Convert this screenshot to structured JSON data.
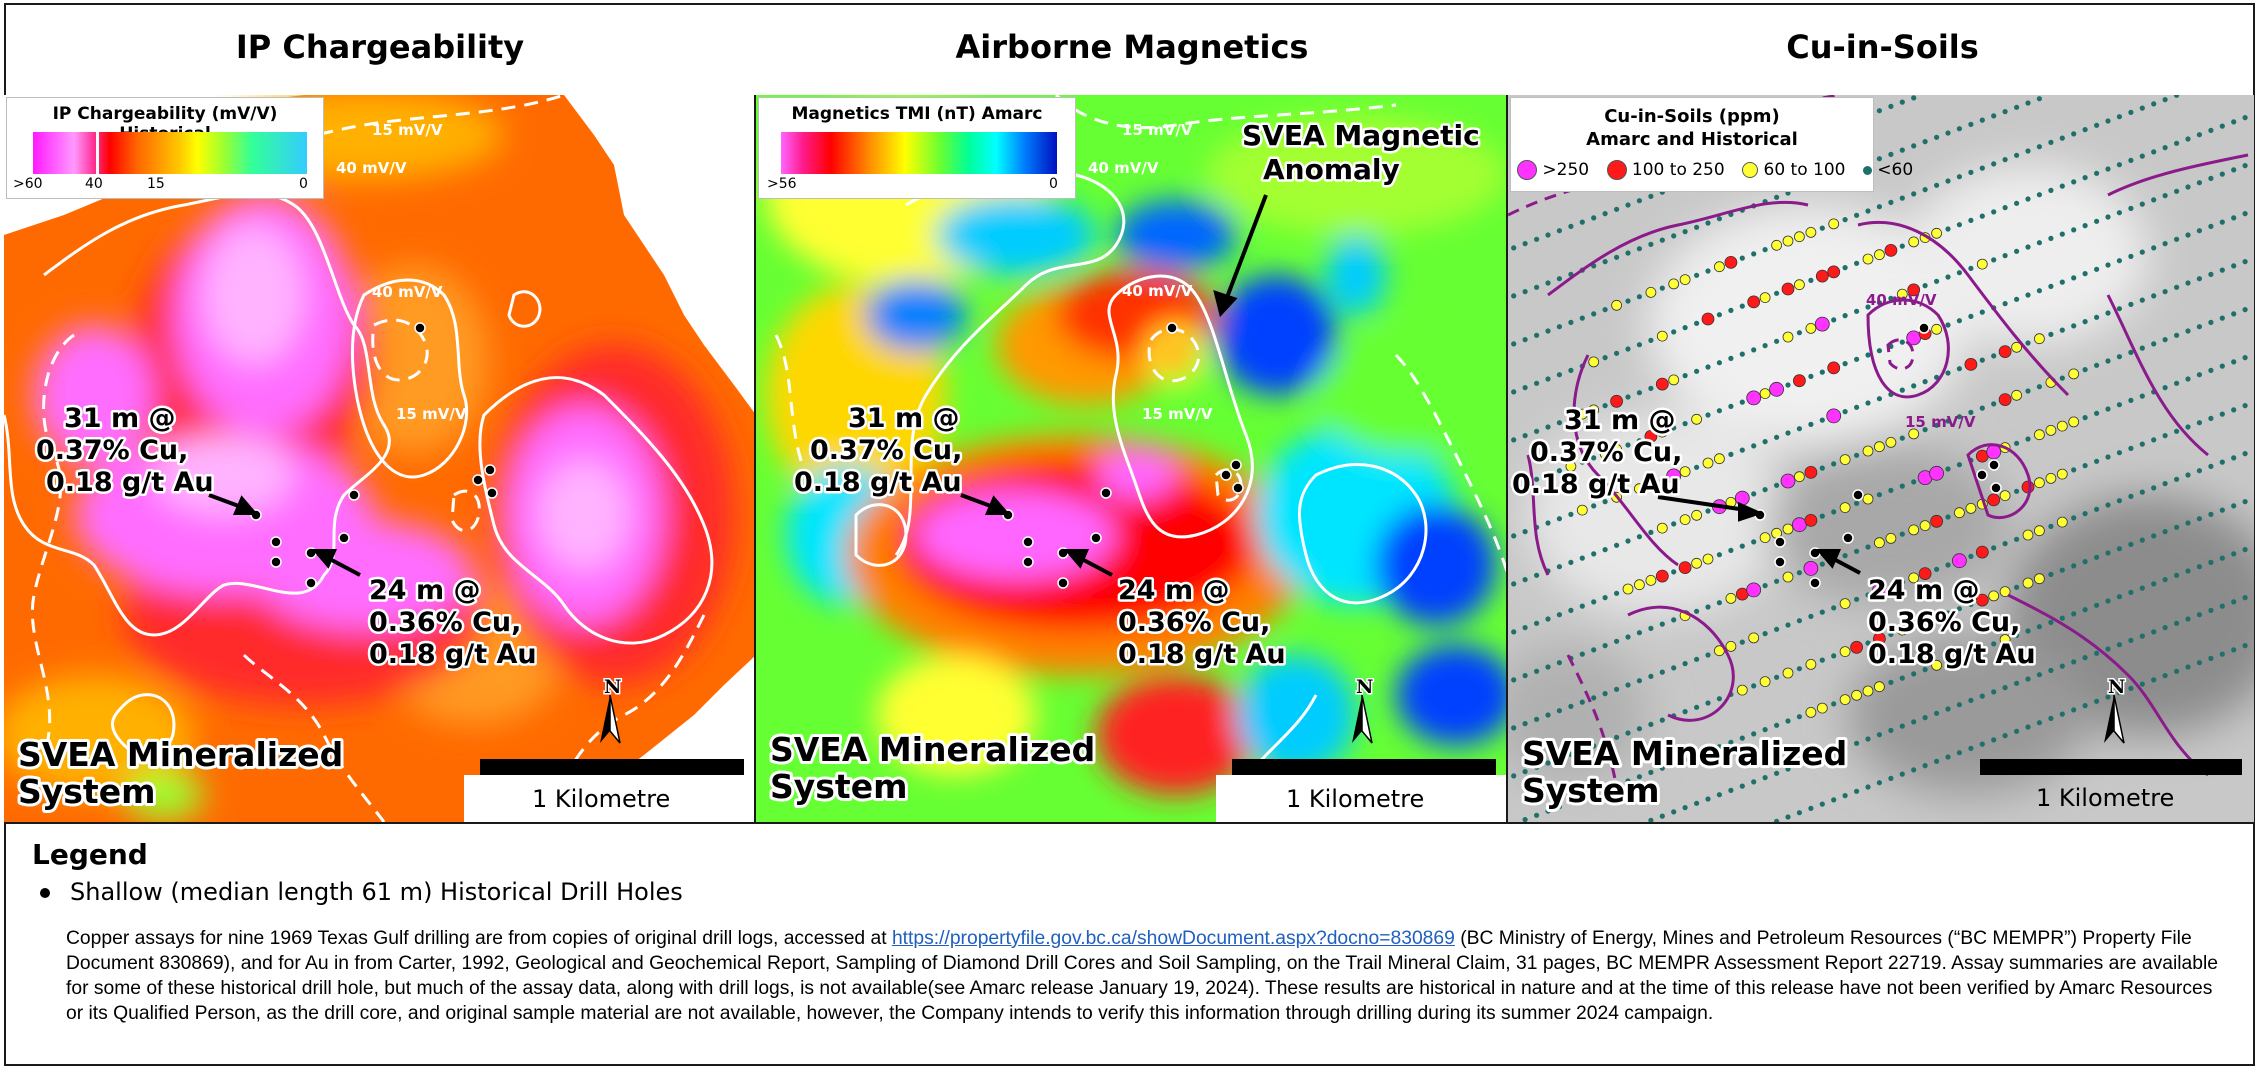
{
  "panels": [
    {
      "title": "IP Chargeability",
      "legend": {
        "title": "IP Chargeability (mV/V) Historical",
        "ticks": [
          ">60",
          "40",
          "15",
          "0"
        ]
      },
      "contour_labels": [
        "15 mV/V",
        "40 mV/V",
        "40 mV/V",
        "15 mV/V"
      ],
      "annotations": [
        [
          "31 m @",
          "0.37% Cu,",
          "0.18 g/t Au"
        ],
        [
          "24 m @",
          "0.36% Cu,",
          "0.18 g/t Au"
        ]
      ],
      "system_label": [
        "SVEA Mineralized",
        "System"
      ],
      "scale_label": "1 Kilometre",
      "north": "N"
    },
    {
      "title": "Airborne Magnetics",
      "legend": {
        "title": "Magnetics TMI (nT) Amarc",
        "ticks": [
          ">56",
          "0"
        ]
      },
      "contour_labels": [
        "15 mV/V",
        "40 mV/V",
        "40 mV/V",
        "15 mV/V"
      ],
      "anomaly_label": [
        "SVEA Magnetic",
        "Anomaly"
      ],
      "annotations": [
        [
          "31 m @",
          "0.37% Cu,",
          "0.18 g/t Au"
        ],
        [
          "24 m @",
          "0.36% Cu,",
          "0.18 g/t Au"
        ]
      ],
      "system_label": [
        "SVEA Mineralized",
        "System"
      ],
      "scale_label": "1 Kilometre",
      "north": "N"
    },
    {
      "title": "Cu-in-Soils",
      "legend": {
        "title_line1": "Cu-in-Soils (ppm)",
        "title_line2": "Amarc and Historical",
        "classes": [
          {
            "label": ">250",
            "color": "#ff33ff"
          },
          {
            "label": "100 to 250",
            "color": "#ff1a1a"
          },
          {
            "label": "60 to 100",
            "color": "#ffff33"
          },
          {
            "label": "<60",
            "color": "#1f6f6a"
          }
        ]
      },
      "contour_labels": [
        "40 mV/V",
        "15 mV/V"
      ],
      "annotations": [
        [
          "31 m @",
          "0.37% Cu,",
          "0.18 g/t Au"
        ],
        [
          "24 m @",
          "0.36% Cu,",
          "0.18 g/t Au"
        ]
      ],
      "system_label": [
        "SVEA Mineralized",
        "System"
      ],
      "scale_label": "1 Kilometre",
      "north": "N"
    }
  ],
  "legend": {
    "title": "Legend",
    "item": "Shallow (median length 61 m) Historical Drill Holes"
  },
  "note": {
    "before_link": "Copper assays for nine 1969 Texas Gulf drilling are from copies of original drill logs, accessed at ",
    "link": "https://propertyfile.gov.bc.ca/showDocument.aspx?docno=830869",
    "after_link": " (BC Ministry of Energy, Mines and Petroleum Resources (“BC MEMPR”) Property File Document 830869), and for Au in from Carter, 1992, Geological and Geochemical Report, Sampling of Diamond Drill Cores and Soil Sampling, on the Trail Mineral Claim, 31 pages, BC MEMPR Assessment Report 22719. Assay summaries are available for some of these historical drill hole, but much of the assay data, along with drill logs, is not available(see Amarc release January 19, 2024). These results are historical in nature and at the time of this release have not been verified by Amarc Resources or its Qualified Person, as the drill core, and original sample material are not available, however, the Company intends to verify this information through drilling during its summer 2024  campaign."
  },
  "colors": {
    "ip_ramp": [
      "#ff33ff",
      "#ff66ff",
      "#ff0000",
      "#ff8000",
      "#ffff00",
      "#66ff33",
      "#33ccff"
    ],
    "mag_ramp": [
      "#ff66ff",
      "#ff0000",
      "#ff8c00",
      "#ffff00",
      "#33ff33",
      "#00ffff",
      "#0040ff"
    ],
    "contour": "#ffffff",
    "soil_contour": "#8b1a8b"
  }
}
